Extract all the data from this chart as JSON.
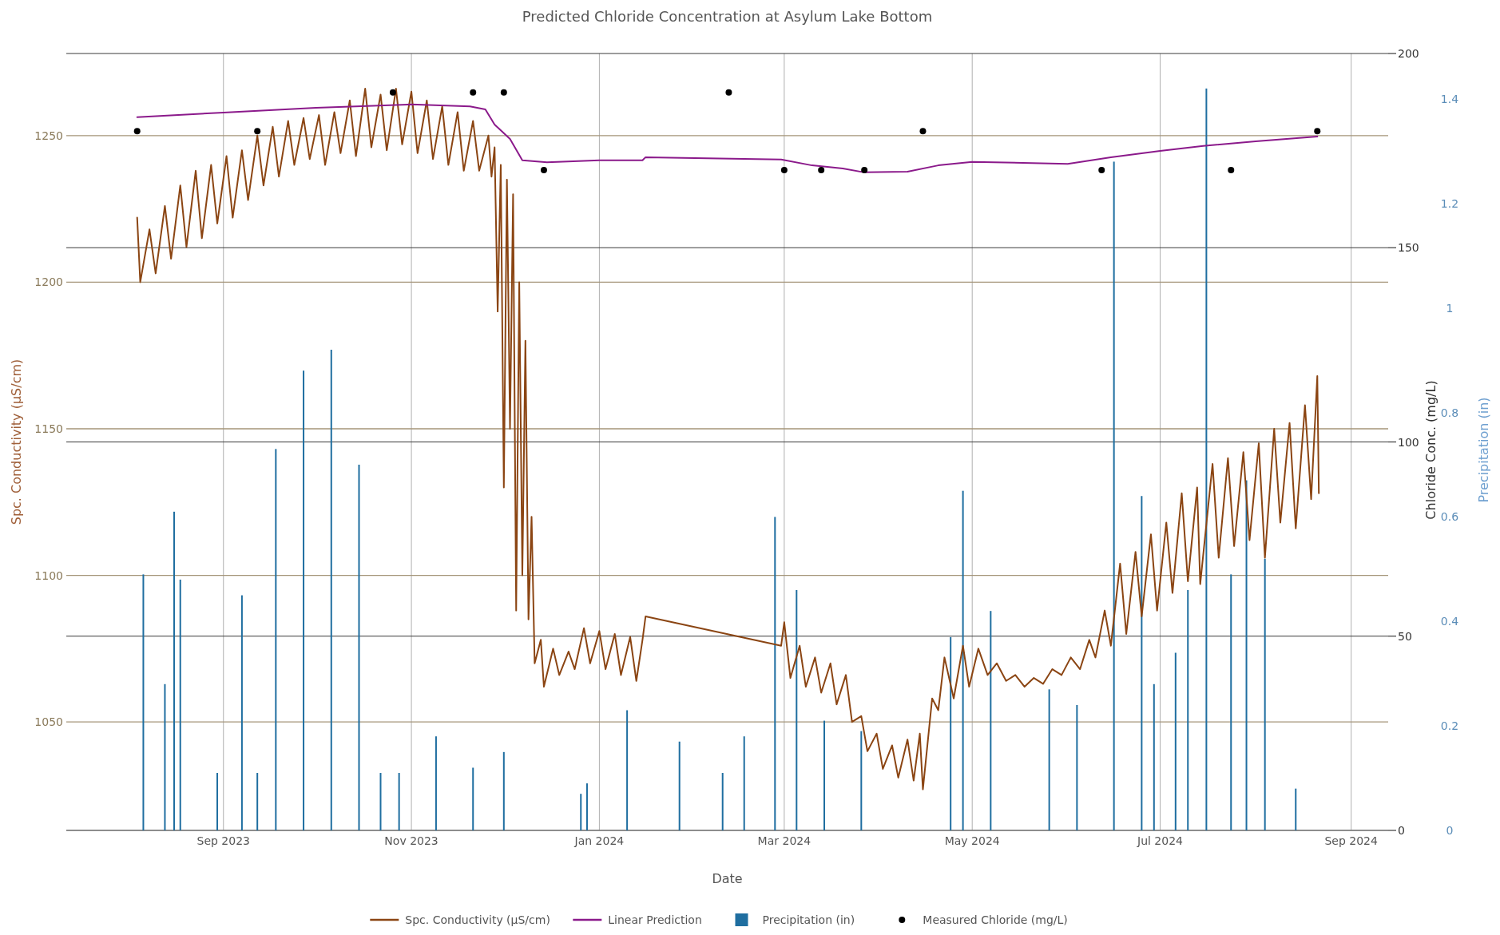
{
  "chart_data": {
    "type": "line",
    "title": "Predicted Chloride Concentration at Asylum Lake Bottom",
    "xlabel": "Date",
    "ylabel": "Spc. Conductivity (µS/cm)",
    "y2label": "Chloride Conc. (mg/L)",
    "y3label": "Precipitation (in)",
    "xlim": [
      "2023-07-12",
      "2024-09-13"
    ],
    "xticks": [
      {
        "value": "2023-09-01",
        "label": "Sep 2023"
      },
      {
        "value": "2023-11-01",
        "label": "Nov 2023"
      },
      {
        "value": "2024-01-01",
        "label": "Jan 2024"
      },
      {
        "value": "2024-03-01",
        "label": "Mar 2024"
      },
      {
        "value": "2024-05-01",
        "label": "May 2024"
      },
      {
        "value": "2024-07-01",
        "label": "Jul 2024"
      },
      {
        "value": "2024-09-01",
        "label": "Sep 2024"
      }
    ],
    "ylim": [
      1013,
      1278
    ],
    "yticks": [
      1050,
      1100,
      1150,
      1200,
      1250
    ],
    "y2lim": [
      0,
      200
    ],
    "y2ticks": [
      0,
      50,
      100,
      150,
      200
    ],
    "y3lim": [
      0,
      1.487
    ],
    "y3ticks": [
      0,
      0.2,
      0.4,
      0.6,
      0.8,
      1,
      1.2,
      1.4
    ],
    "grid": true,
    "legend": "bottom",
    "series": [
      {
        "name": "Spc. Conductivity (µS/cm)",
        "color": "#8b4513",
        "x": [
          "2023-08-04",
          "2023-08-05",
          "2023-08-08",
          "2023-08-10",
          "2023-08-13",
          "2023-08-15",
          "2023-08-18",
          "2023-08-20",
          "2023-08-23",
          "2023-08-25",
          "2023-08-28",
          "2023-08-30",
          "2023-09-02",
          "2023-09-04",
          "2023-09-07",
          "2023-09-09",
          "2023-09-12",
          "2023-09-14",
          "2023-09-17",
          "2023-09-19",
          "2023-09-22",
          "2023-09-24",
          "2023-09-27",
          "2023-09-29",
          "2023-10-02",
          "2023-10-04",
          "2023-10-07",
          "2023-10-09",
          "2023-10-12",
          "2023-10-14",
          "2023-10-17",
          "2023-10-19",
          "2023-10-22",
          "2023-10-24",
          "2023-10-27",
          "2023-10-29",
          "2023-11-01",
          "2023-11-03",
          "2023-11-06",
          "2023-11-08",
          "2023-11-11",
          "2023-11-13",
          "2023-11-16",
          "2023-11-18",
          "2023-11-21",
          "2023-11-23",
          "2023-11-26",
          "2023-11-27",
          "2023-11-28",
          "2023-11-29",
          "2023-11-30",
          "2023-12-01",
          "2023-12-02",
          "2023-12-03",
          "2023-12-04",
          "2023-12-05",
          "2023-12-06",
          "2023-12-07",
          "2023-12-08",
          "2023-12-09",
          "2023-12-10",
          "2023-12-11",
          "2023-12-13",
          "2023-12-14",
          "2023-12-17",
          "2023-12-19",
          "2023-12-22",
          "2023-12-24",
          "2023-12-27",
          "2023-12-29",
          "2024-01-01",
          "2024-01-03",
          "2024-01-06",
          "2024-01-08",
          "2024-01-11",
          "2024-01-13",
          "2024-01-15",
          "2024-01-16",
          "2024-02-29",
          "2024-03-01",
          "2024-03-03",
          "2024-03-06",
          "2024-03-08",
          "2024-03-11",
          "2024-03-13",
          "2024-03-16",
          "2024-03-18",
          "2024-03-21",
          "2024-03-23",
          "2024-03-26",
          "2024-03-28",
          "2024-03-31",
          "2024-04-02",
          "2024-04-05",
          "2024-04-07",
          "2024-04-10",
          "2024-04-12",
          "2024-04-14",
          "2024-04-15",
          "2024-04-18",
          "2024-04-20",
          "2024-04-22",
          "2024-04-25",
          "2024-04-28",
          "2024-04-30",
          "2024-05-03",
          "2024-05-06",
          "2024-05-09",
          "2024-05-12",
          "2024-05-15",
          "2024-05-18",
          "2024-05-21",
          "2024-05-24",
          "2024-05-27",
          "2024-05-30",
          "2024-06-02",
          "2024-06-05",
          "2024-06-08",
          "2024-06-10",
          "2024-06-13",
          "2024-06-15",
          "2024-06-18",
          "2024-06-20",
          "2024-06-23",
          "2024-06-25",
          "2024-06-28",
          "2024-06-30",
          "2024-07-03",
          "2024-07-05",
          "2024-07-08",
          "2024-07-10",
          "2024-07-13",
          "2024-07-14",
          "2024-07-18",
          "2024-07-20",
          "2024-07-23",
          "2024-07-25",
          "2024-07-28",
          "2024-07-30",
          "2024-08-02",
          "2024-08-04",
          "2024-08-07",
          "2024-08-09",
          "2024-08-12",
          "2024-08-14",
          "2024-08-17",
          "2024-08-19",
          "2024-08-21",
          "2024-08-21T12:00"
        ],
        "values": [
          1222,
          1200,
          1218,
          1203,
          1226,
          1208,
          1233,
          1212,
          1238,
          1215,
          1240,
          1220,
          1243,
          1222,
          1245,
          1228,
          1250,
          1233,
          1253,
          1236,
          1255,
          1240,
          1256,
          1242,
          1257,
          1240,
          1258,
          1244,
          1262,
          1243,
          1266,
          1246,
          1264,
          1245,
          1266,
          1247,
          1265,
          1244,
          1262,
          1242,
          1260,
          1240,
          1258,
          1238,
          1255,
          1238,
          1250,
          1236,
          1246,
          1190,
          1240,
          1130,
          1235,
          1150,
          1230,
          1088,
          1200,
          1100,
          1180,
          1085,
          1120,
          1070,
          1078,
          1062,
          1075,
          1066,
          1074,
          1068,
          1082,
          1070,
          1081,
          1068,
          1080,
          1066,
          1079,
          1064,
          1078,
          1086,
          1076,
          1084,
          1065,
          1076,
          1062,
          1072,
          1060,
          1070,
          1056,
          1066,
          1050,
          1052,
          1040,
          1046,
          1034,
          1042,
          1031,
          1044,
          1030,
          1046,
          1027,
          1058,
          1054,
          1072,
          1058,
          1076,
          1062,
          1075,
          1066,
          1070,
          1064,
          1066,
          1062,
          1065,
          1063,
          1068,
          1066,
          1072,
          1068,
          1078,
          1072,
          1088,
          1076,
          1104,
          1080,
          1108,
          1086,
          1114,
          1088,
          1118,
          1094,
          1128,
          1098,
          1130,
          1097,
          1138,
          1106,
          1140,
          1110,
          1142,
          1112,
          1145,
          1106,
          1150,
          1118,
          1152,
          1116,
          1158,
          1126,
          1168,
          1128
        ]
      },
      {
        "name": "Linear Prediction",
        "type": "line",
        "color": "#8b1a8b",
        "axis": "y2",
        "x": [
          "2023-08-04",
          "2023-09-01",
          "2023-10-01",
          "2023-11-01",
          "2023-11-20",
          "2023-11-25",
          "2023-11-28",
          "2023-12-03",
          "2023-12-07",
          "2023-12-15",
          "2024-01-01",
          "2024-01-15",
          "2024-01-16",
          "2024-02-29",
          "2024-03-10",
          "2024-03-20",
          "2024-03-27",
          "2024-04-10",
          "2024-04-20",
          "2024-05-01",
          "2024-06-01",
          "2024-06-15",
          "2024-07-01",
          "2024-07-15",
          "2024-08-01",
          "2024-08-21"
        ],
        "values": [
          183.6,
          184.8,
          186,
          186.9,
          186.4,
          185.6,
          181.7,
          178,
          172.5,
          172,
          172.5,
          172.5,
          173.3,
          172.7,
          171.2,
          170.4,
          169.4,
          169.6,
          171.2,
          172.1,
          171.6,
          173.3,
          174.9,
          176.2,
          177.4,
          178.6
        ]
      },
      {
        "name": "Precipitation (in)",
        "type": "bar",
        "color": "#1f6ea0",
        "axis": "y3",
        "x": [
          "2023-08-06",
          "2023-08-13",
          "2023-08-16",
          "2023-08-18",
          "2023-08-30",
          "2023-09-07",
          "2023-09-12",
          "2023-09-18",
          "2023-09-27",
          "2023-10-06",
          "2023-10-15",
          "2023-10-22",
          "2023-10-28",
          "2023-11-09",
          "2023-11-21",
          "2023-12-01",
          "2023-12-26",
          "2023-12-28",
          "2024-01-10",
          "2024-01-27",
          "2024-02-10",
          "2024-02-17",
          "2024-02-27",
          "2024-03-05",
          "2024-03-14",
          "2024-03-26",
          "2024-04-24",
          "2024-04-28",
          "2024-05-07",
          "2024-05-26",
          "2024-06-04",
          "2024-06-16",
          "2024-06-25",
          "2024-06-29",
          "2024-07-06",
          "2024-07-10",
          "2024-07-16",
          "2024-07-24",
          "2024-07-29",
          "2024-08-04",
          "2024-08-14"
        ],
        "values": [
          0.49,
          0.28,
          0.61,
          0.48,
          0.11,
          0.45,
          0.11,
          0.73,
          0.88,
          0.92,
          0.7,
          0.11,
          0.11,
          0.18,
          0.12,
          0.15,
          0.07,
          0.09,
          0.23,
          0.17,
          0.11,
          0.18,
          0.6,
          0.46,
          0.21,
          0.19,
          0.37,
          0.65,
          0.42,
          0.27,
          0.24,
          1.28,
          0.64,
          0.28,
          0.34,
          0.46,
          1.42,
          0.49,
          0.67,
          0.52,
          0.08
        ]
      },
      {
        "name": "Measured Chloride (mg/L)",
        "type": "scatter",
        "color": "#000000",
        "axis": "y2",
        "marker": "circle",
        "x": [
          "2023-08-04",
          "2023-09-12",
          "2023-10-26",
          "2023-11-21",
          "2023-12-01",
          "2023-12-14",
          "2024-02-12",
          "2024-03-01",
          "2024-03-13",
          "2024-03-27",
          "2024-04-15",
          "2024-06-12",
          "2024-07-24",
          "2024-08-21"
        ],
        "values": [
          180,
          180,
          190,
          190,
          190,
          170,
          190,
          170,
          170,
          170,
          180,
          170,
          170,
          180
        ]
      }
    ]
  }
}
